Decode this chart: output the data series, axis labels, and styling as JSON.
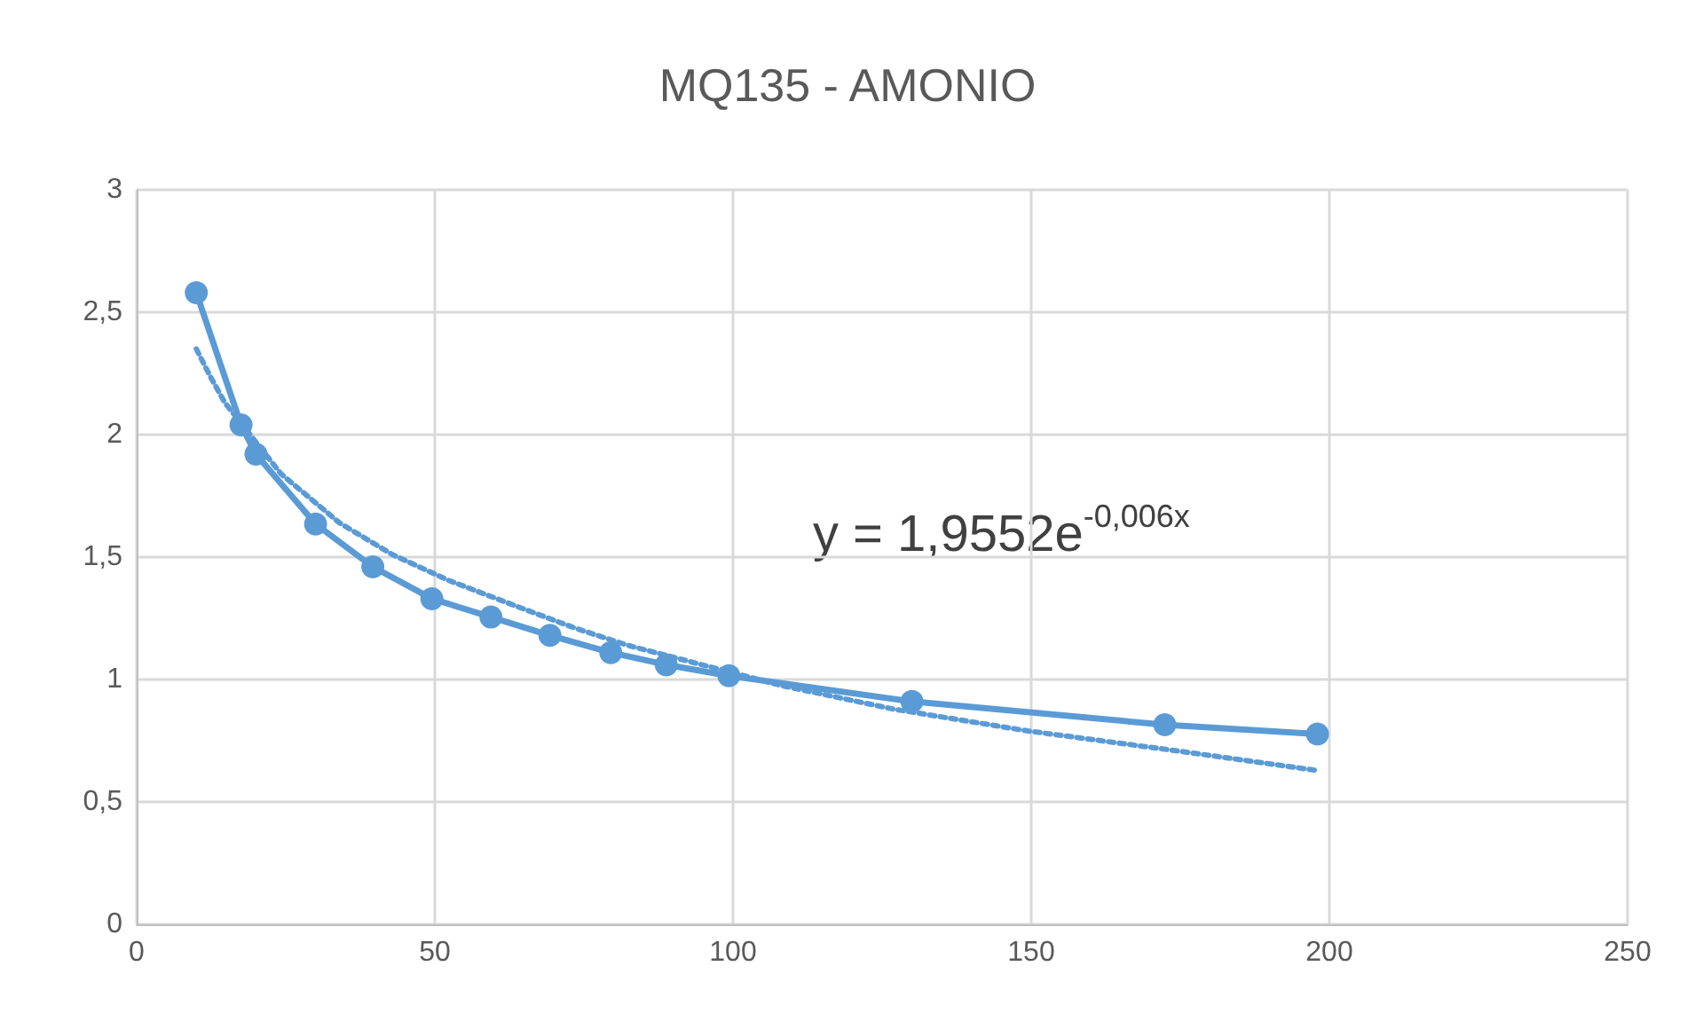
{
  "chart_data": {
    "type": "line",
    "title": "MQ135 - AMONIO",
    "x": [
      10,
      17.5,
      20,
      30,
      39.6,
      49.5,
      59.4,
      69.3,
      79.5,
      88.8,
      99.3,
      130,
      172.4,
      198
    ],
    "series": [
      {
        "color": "#5b9bd5",
        "marker": "circle",
        "line_style": "solid",
        "values": [
          2.58,
          2.04,
          1.92,
          1.635,
          1.46,
          1.33,
          1.255,
          1.18,
          1.11,
          1.06,
          1.015,
          0.91,
          0.815,
          0.777
        ]
      },
      {
        "color": "#5b9bd5",
        "marker": "none",
        "line_style": "dotted",
        "x": [
          10,
          12.3,
          14.8,
          24.2,
          34,
          42.9,
          52.3,
          63.6,
          73.5,
          82.3,
          108,
          126.7,
          149.4,
          174,
          197.5
        ],
        "values": [
          2.35,
          2.24,
          2.13,
          1.84,
          1.64,
          1.51,
          1.405,
          1.3,
          1.21,
          1.14,
          0.976,
          0.88,
          0.79,
          0.71,
          0.63
        ]
      }
    ],
    "xlim": [
      0,
      250
    ],
    "xticks": [
      0,
      50,
      100,
      150,
      200,
      250
    ],
    "ylim": [
      0,
      3
    ],
    "yticks": [
      0,
      {
        "value": 0.5,
        "label": "0,5"
      },
      1,
      {
        "value": 1.5,
        "label": "1,5"
      },
      2,
      {
        "value": 2.5,
        "label": "2,5"
      },
      3
    ],
    "annotations": [
      "y = 1,9552e$^{-0,006x}$"
    ],
    "grid": true
  }
}
